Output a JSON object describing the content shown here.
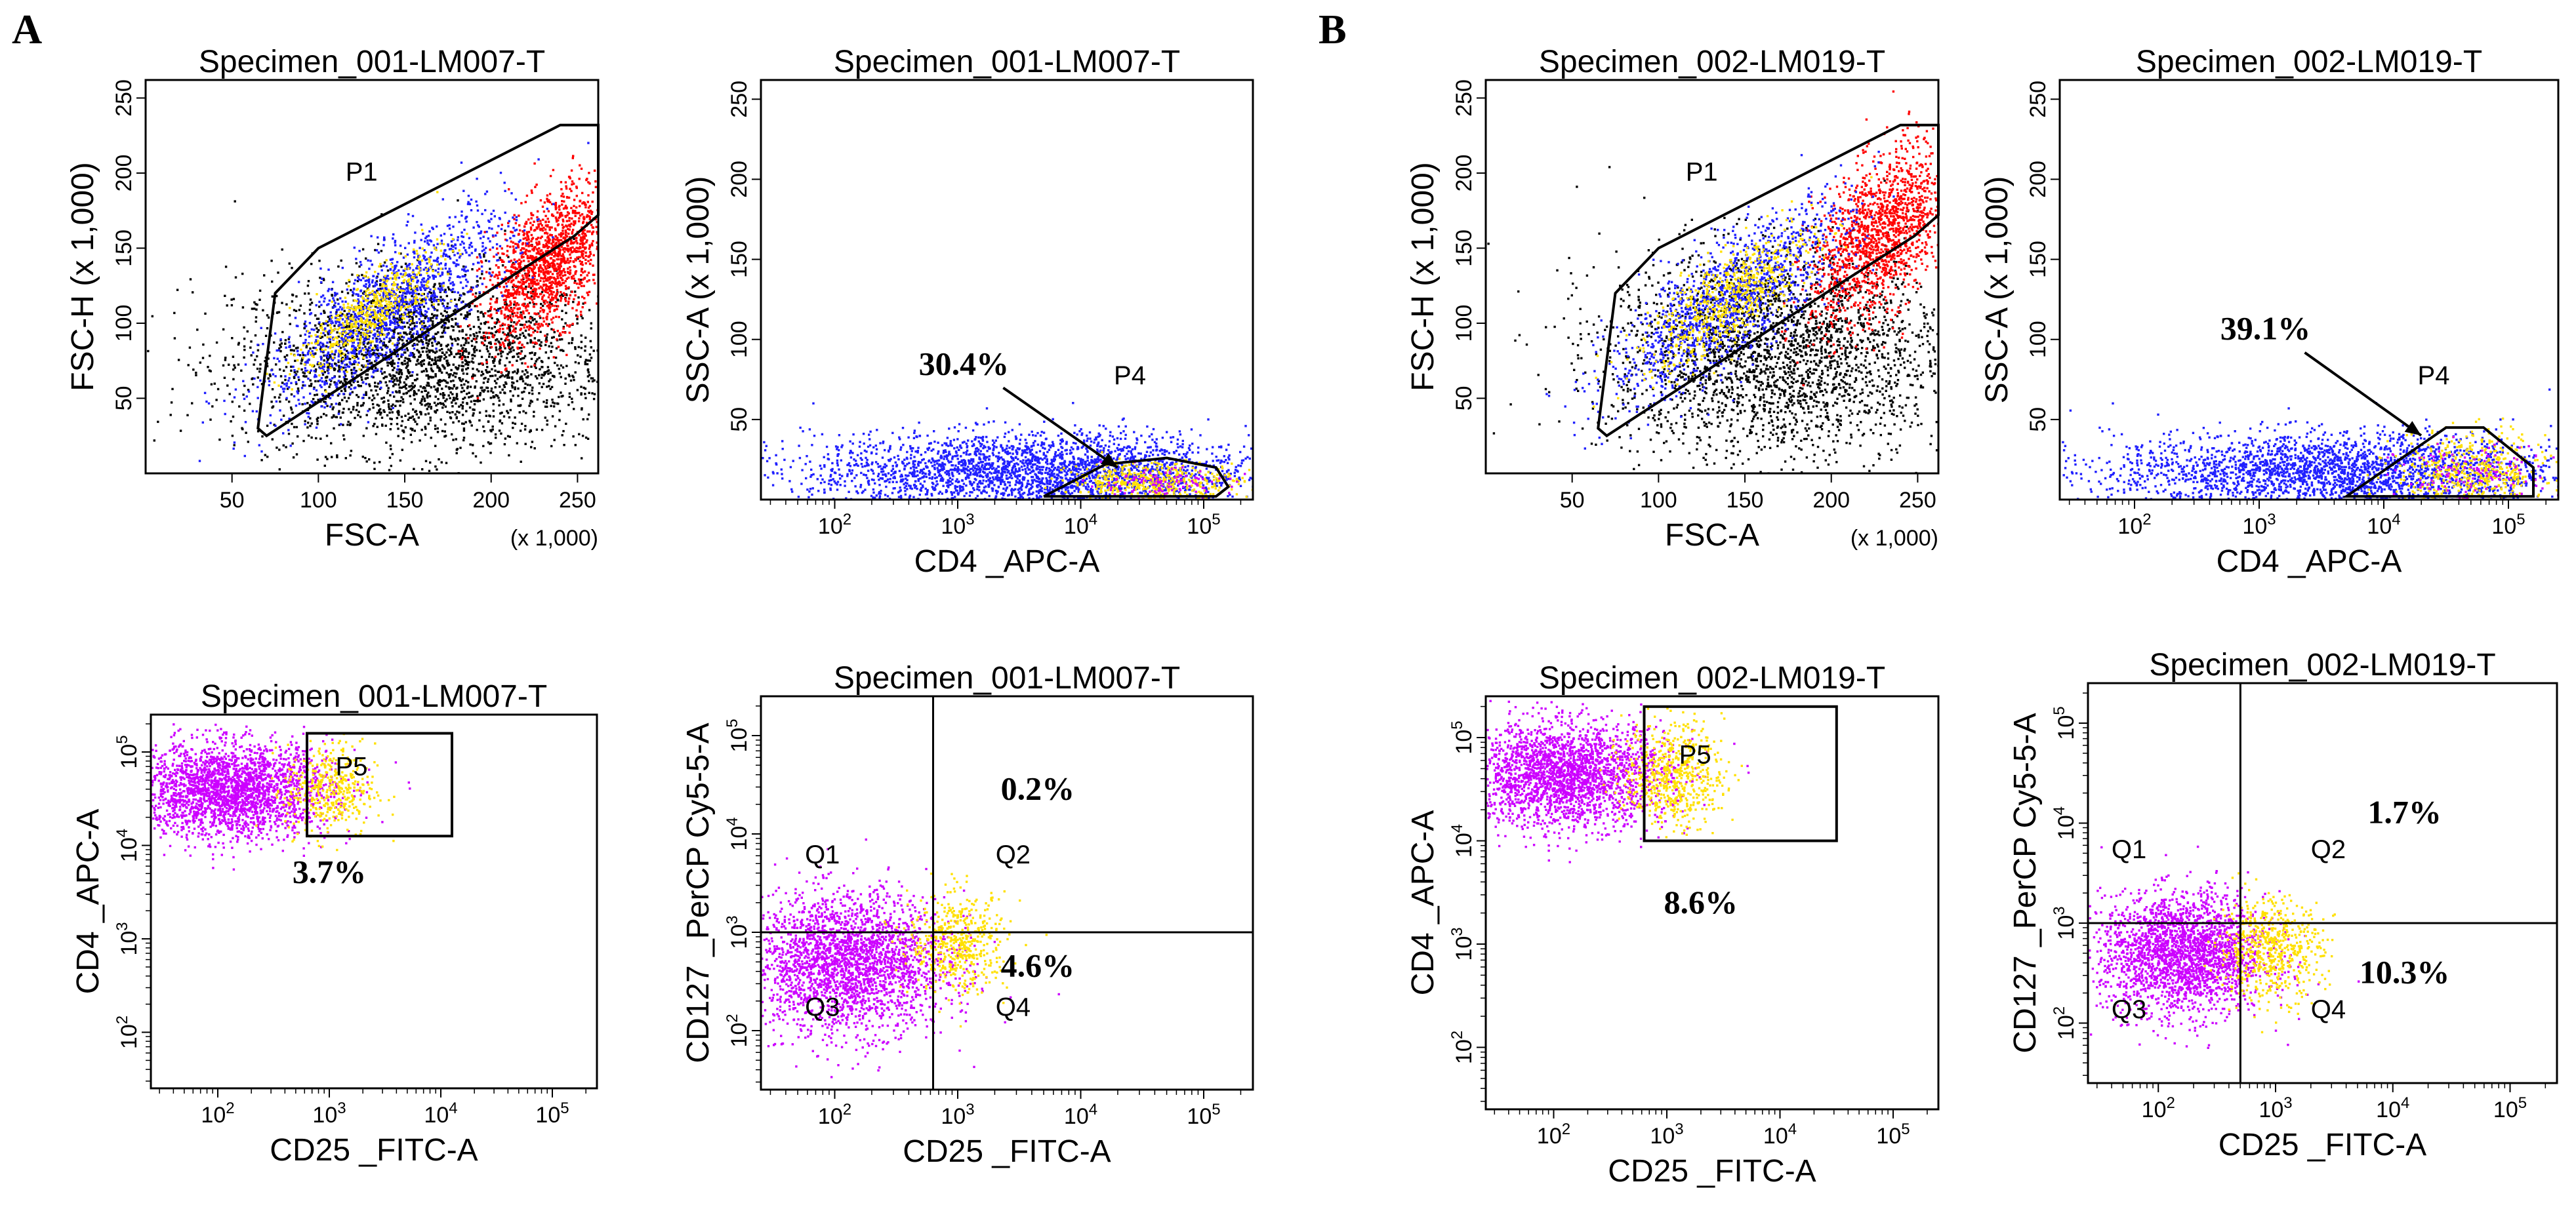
{
  "panel_labels": [
    "A",
    "B"
  ],
  "chart_data": [
    {
      "id": "A1",
      "type": "scatter",
      "panel": "A",
      "title": "Specimen_001-LM007-T",
      "xlabel": "FSC-A",
      "ylabel": "FSC-H (x 1,000)",
      "xmult": "(x 1,000)",
      "xlim": [
        0,
        262
      ],
      "ylim": [
        0,
        262
      ],
      "xticks": [
        "50",
        "100",
        "150",
        "200",
        "250"
      ],
      "xtick_values": [
        50,
        100,
        150,
        200,
        250
      ],
      "yticks": [
        "50",
        "100",
        "150",
        "200",
        "250"
      ],
      "ytick_values": [
        50,
        100,
        150,
        200,
        250
      ],
      "gates": [
        {
          "name": "P1",
          "label_at": [
            125,
            195
          ],
          "polygon": [
            [
              70,
              25
            ],
            [
              210,
              130
            ],
            [
              248,
              158
            ],
            [
              262,
              172
            ],
            [
              262,
              232
            ],
            [
              240,
              232
            ],
            [
              100,
              150
            ],
            [
              75,
              120
            ],
            [
              65,
              30
            ]
          ]
        }
      ],
      "populations": [
        {
          "name": "ungated",
          "color": "#000000",
          "center": [
            160,
            75
          ],
          "spread": [
            55,
            30
          ],
          "count": 2600
        },
        {
          "name": "red-gate",
          "color": "#ff0000",
          "center": [
            232,
            140
          ],
          "spread": [
            18,
            22
          ],
          "count": 1500
        },
        {
          "name": "blue-gate",
          "color": "#2020ff",
          "center": [
            140,
            110
          ],
          "spread": [
            35,
            20
          ],
          "count": 1400
        },
        {
          "name": "yellow-core",
          "color": "#ffe000",
          "center": [
            130,
            108
          ],
          "spread": [
            20,
            12
          ],
          "count": 500
        }
      ]
    },
    {
      "id": "A2",
      "type": "scatter",
      "panel": "A",
      "title": "Specimen_001-LM007-T",
      "xlabel": "CD4 _APC-A",
      "ylabel": "SSC-A (x 1,000)",
      "xscale": "log",
      "xlim": [
        1.4,
        5.4
      ],
      "ylim": [
        0,
        262
      ],
      "xticks": [
        "10^2",
        "10^3",
        "10^4",
        "10^5"
      ],
      "xtick_values": [
        2,
        3,
        4,
        5
      ],
      "yticks": [
        "50",
        "100",
        "150",
        "200",
        "250"
      ],
      "ytick_values": [
        50,
        100,
        150,
        200,
        250
      ],
      "gates": [
        {
          "name": "P4",
          "label_at": [
            4.4,
            72
          ],
          "polygon": [
            [
              3.7,
              2
            ],
            [
              4.2,
              22
            ],
            [
              4.7,
              26
            ],
            [
              5.1,
              20
            ],
            [
              5.2,
              8
            ],
            [
              5.1,
              2
            ]
          ]
        }
      ],
      "annotations": [
        {
          "text": "30.4%",
          "at": [
            3.05,
            78
          ],
          "arrow_to": [
            4.3,
            20
          ]
        }
      ],
      "populations": [
        {
          "name": "blue-band",
          "color": "#2020ff",
          "center": [
            3.6,
            18
          ],
          "spread": [
            0.9,
            12
          ],
          "count": 2800
        },
        {
          "name": "yellow-gate",
          "color": "#ffe000",
          "center": [
            4.6,
            12
          ],
          "spread": [
            0.35,
            6
          ],
          "count": 450
        },
        {
          "name": "magenta",
          "color": "#cc00ff",
          "center": [
            4.6,
            10
          ],
          "spread": [
            0.3,
            5
          ],
          "count": 120
        }
      ]
    },
    {
      "id": "A3",
      "type": "scatter",
      "panel": "A",
      "title": "Specimen_001-LM007-T",
      "xlabel": "CD25 _FITC-A",
      "ylabel": "CD4 _APC-A",
      "xscale": "log",
      "yscale": "log",
      "xlim": [
        1.4,
        5.4
      ],
      "ylim": [
        1.4,
        5.4
      ],
      "xticks": [
        "10^2",
        "10^3",
        "10^4",
        "10^5"
      ],
      "xtick_values": [
        2,
        3,
        4,
        5
      ],
      "yticks": [
        "10^2",
        "10^3",
        "10^4",
        "10^5"
      ],
      "ytick_values": [
        2,
        3,
        4,
        5
      ],
      "gates": [
        {
          "name": "P5",
          "label_at": [
            3.2,
            4.75
          ],
          "polygon": [
            [
              2.8,
              4.1
            ],
            [
              4.1,
              4.1
            ],
            [
              4.1,
              5.2
            ],
            [
              2.8,
              5.2
            ]
          ]
        }
      ],
      "annotations": [
        {
          "text": "3.7%",
          "at": [
            3.0,
            3.6
          ]
        }
      ],
      "populations": [
        {
          "name": "magenta",
          "color": "#cc00ff",
          "center": [
            2.1,
            4.6
          ],
          "spread": [
            0.45,
            0.25
          ],
          "count": 2500
        },
        {
          "name": "yellow-P5",
          "color": "#ffe000",
          "center": [
            3.0,
            4.6
          ],
          "spread": [
            0.2,
            0.25
          ],
          "count": 400
        }
      ]
    },
    {
      "id": "A4",
      "type": "scatter",
      "panel": "A",
      "title": "Specimen_001-LM007-T",
      "xlabel": "CD25 _FITC-A",
      "ylabel": "CD127 _PerCP Cy5-5-A",
      "xscale": "log",
      "yscale": "log",
      "xlim": [
        1.4,
        5.4
      ],
      "ylim": [
        1.4,
        5.4
      ],
      "xticks": [
        "10^2",
        "10^3",
        "10^4",
        "10^5"
      ],
      "xtick_values": [
        2,
        3,
        4,
        5
      ],
      "yticks": [
        "10^2",
        "10^3",
        "10^4",
        "10^5"
      ],
      "ytick_values": [
        2,
        3,
        4,
        5
      ],
      "quadrant": [
        2.8,
        3.0
      ],
      "quadrant_labels": [
        {
          "text": "Q1",
          "at": [
            1.9,
            3.7
          ]
        },
        {
          "text": "Q2",
          "at": [
            3.45,
            3.7
          ]
        },
        {
          "text": "Q3",
          "at": [
            1.9,
            2.15
          ]
        },
        {
          "text": "Q4",
          "at": [
            3.45,
            2.15
          ]
        }
      ],
      "annotations": [
        {
          "text": "0.2%",
          "at": [
            3.65,
            4.35
          ]
        },
        {
          "text": "4.6%",
          "at": [
            3.65,
            2.55
          ]
        }
      ],
      "populations": [
        {
          "name": "magenta",
          "color": "#cc00ff",
          "center": [
            2.1,
            2.7
          ],
          "spread": [
            0.4,
            0.35
          ],
          "count": 2500
        },
        {
          "name": "yellow-Q4",
          "color": "#ffe000",
          "center": [
            3.0,
            2.9
          ],
          "spread": [
            0.2,
            0.25
          ],
          "count": 500
        }
      ]
    },
    {
      "id": "B1",
      "type": "scatter",
      "panel": "B",
      "title": "Specimen_002-LM019-T",
      "xlabel": "FSC-A",
      "ylabel": "FSC-H (x 1,000)",
      "xmult": "(x 1,000)",
      "xlim": [
        0,
        262
      ],
      "ylim": [
        0,
        262
      ],
      "xticks": [
        "50",
        "100",
        "150",
        "200",
        "250"
      ],
      "xtick_values": [
        50,
        100,
        150,
        200,
        250
      ],
      "yticks": [
        "50",
        "100",
        "150",
        "200",
        "250"
      ],
      "ytick_values": [
        50,
        100,
        150,
        200,
        250
      ],
      "gates": [
        {
          "name": "P1",
          "label_at": [
            125,
            195
          ],
          "polygon": [
            [
              70,
              25
            ],
            [
              210,
              130
            ],
            [
              248,
              158
            ],
            [
              262,
              172
            ],
            [
              262,
              232
            ],
            [
              240,
              232
            ],
            [
              100,
              150
            ],
            [
              75,
              120
            ],
            [
              65,
              30
            ]
          ]
        }
      ],
      "populations": [
        {
          "name": "ungated",
          "color": "#000000",
          "center": [
            170,
            80
          ],
          "spread": [
            50,
            35
          ],
          "count": 2600
        },
        {
          "name": "red-gate",
          "color": "#ff0000",
          "center": [
            228,
            160
          ],
          "spread": [
            20,
            25
          ],
          "count": 1500
        },
        {
          "name": "blue-gate",
          "color": "#2020ff",
          "center": [
            140,
            115
          ],
          "spread": [
            35,
            20
          ],
          "count": 1300
        },
        {
          "name": "yellow-core",
          "color": "#ffe000",
          "center": [
            140,
            118
          ],
          "spread": [
            25,
            15
          ],
          "count": 600
        }
      ]
    },
    {
      "id": "B2",
      "type": "scatter",
      "panel": "B",
      "title": "Specimen_002-LM019-T",
      "xlabel": "CD4 _APC-A",
      "ylabel": "SSC-A (x 1,000)",
      "xscale": "log",
      "xlim": [
        1.4,
        5.4
      ],
      "ylim": [
        0,
        262
      ],
      "xticks": [
        "10^2",
        "10^3",
        "10^4",
        "10^5"
      ],
      "xtick_values": [
        2,
        3,
        4,
        5
      ],
      "yticks": [
        "50",
        "100",
        "150",
        "200",
        "250"
      ],
      "ytick_values": [
        50,
        100,
        150,
        200,
        250
      ],
      "gates": [
        {
          "name": "P4",
          "label_at": [
            4.4,
            72
          ],
          "polygon": [
            [
              3.7,
              2
            ],
            [
              4.5,
              45
            ],
            [
              4.8,
              45
            ],
            [
              5.2,
              20
            ],
            [
              5.2,
              2
            ]
          ]
        }
      ],
      "annotations": [
        {
          "text": "39.1%",
          "at": [
            3.05,
            100
          ],
          "arrow_to": [
            4.3,
            40
          ]
        }
      ],
      "populations": [
        {
          "name": "blue-band",
          "color": "#2020ff",
          "center": [
            3.6,
            18
          ],
          "spread": [
            0.9,
            12
          ],
          "count": 2600
        },
        {
          "name": "yellow-gate",
          "color": "#ffe000",
          "center": [
            4.7,
            18
          ],
          "spread": [
            0.3,
            12
          ],
          "count": 500
        },
        {
          "name": "magenta",
          "color": "#cc00ff",
          "center": [
            4.7,
            15
          ],
          "spread": [
            0.3,
            10
          ],
          "count": 150
        }
      ]
    },
    {
      "id": "B3",
      "type": "scatter",
      "panel": "B",
      "title": "Specimen_002-LM019-T",
      "xlabel": "CD25 _FITC-A",
      "ylabel": "CD4 _APC-A",
      "xscale": "log",
      "yscale": "log",
      "xlim": [
        1.4,
        5.4
      ],
      "ylim": [
        1.4,
        5.4
      ],
      "xticks": [
        "10^2",
        "10^3",
        "10^4",
        "10^5"
      ],
      "xtick_values": [
        2,
        3,
        4,
        5
      ],
      "yticks": [
        "10^2",
        "10^3",
        "10^4",
        "10^5"
      ],
      "ytick_values": [
        2,
        3,
        4,
        5
      ],
      "gates": [
        {
          "name": "P5",
          "label_at": [
            3.25,
            4.75
          ],
          "polygon": [
            [
              2.8,
              4.0
            ],
            [
              4.5,
              4.0
            ],
            [
              4.5,
              5.3
            ],
            [
              2.8,
              5.3
            ]
          ]
        }
      ],
      "annotations": [
        {
          "text": "8.6%",
          "at": [
            3.3,
            3.3
          ]
        }
      ],
      "populations": [
        {
          "name": "magenta",
          "color": "#cc00ff",
          "center": [
            2.1,
            4.65
          ],
          "spread": [
            0.45,
            0.25
          ],
          "count": 2400
        },
        {
          "name": "yellow-P5",
          "color": "#ffe000",
          "center": [
            3.05,
            4.65
          ],
          "spread": [
            0.22,
            0.25
          ],
          "count": 600
        }
      ]
    },
    {
      "id": "B4",
      "type": "scatter",
      "panel": "B",
      "title": "Specimen_002-LM019-T",
      "xlabel": "CD25 _FITC-A",
      "ylabel": "CD127 _PerCP Cy5-5-A",
      "xscale": "log",
      "yscale": "log",
      "xlim": [
        1.4,
        5.4
      ],
      "ylim": [
        1.4,
        5.4
      ],
      "xticks": [
        "10^2",
        "10^3",
        "10^4",
        "10^5"
      ],
      "xtick_values": [
        2,
        3,
        4,
        5
      ],
      "yticks": [
        "10^2",
        "10^3",
        "10^4",
        "10^5"
      ],
      "ytick_values": [
        2,
        3,
        4,
        5
      ],
      "quadrant": [
        2.7,
        3.0
      ],
      "quadrant_labels": [
        {
          "text": "Q1",
          "at": [
            1.75,
            3.65
          ]
        },
        {
          "text": "Q2",
          "at": [
            3.45,
            3.65
          ]
        },
        {
          "text": "Q3",
          "at": [
            1.75,
            2.05
          ]
        },
        {
          "text": "Q4",
          "at": [
            3.45,
            2.05
          ]
        }
      ],
      "annotations": [
        {
          "text": "1.7%",
          "at": [
            4.1,
            4.0
          ]
        },
        {
          "text": "10.3%",
          "at": [
            4.1,
            2.4
          ]
        }
      ],
      "populations": [
        {
          "name": "magenta",
          "color": "#cc00ff",
          "center": [
            2.2,
            2.7
          ],
          "spread": [
            0.35,
            0.3
          ],
          "count": 2300
        },
        {
          "name": "yellow-Q4",
          "color": "#ffe000",
          "center": [
            2.95,
            2.75
          ],
          "spread": [
            0.22,
            0.25
          ],
          "count": 600
        }
      ]
    }
  ]
}
